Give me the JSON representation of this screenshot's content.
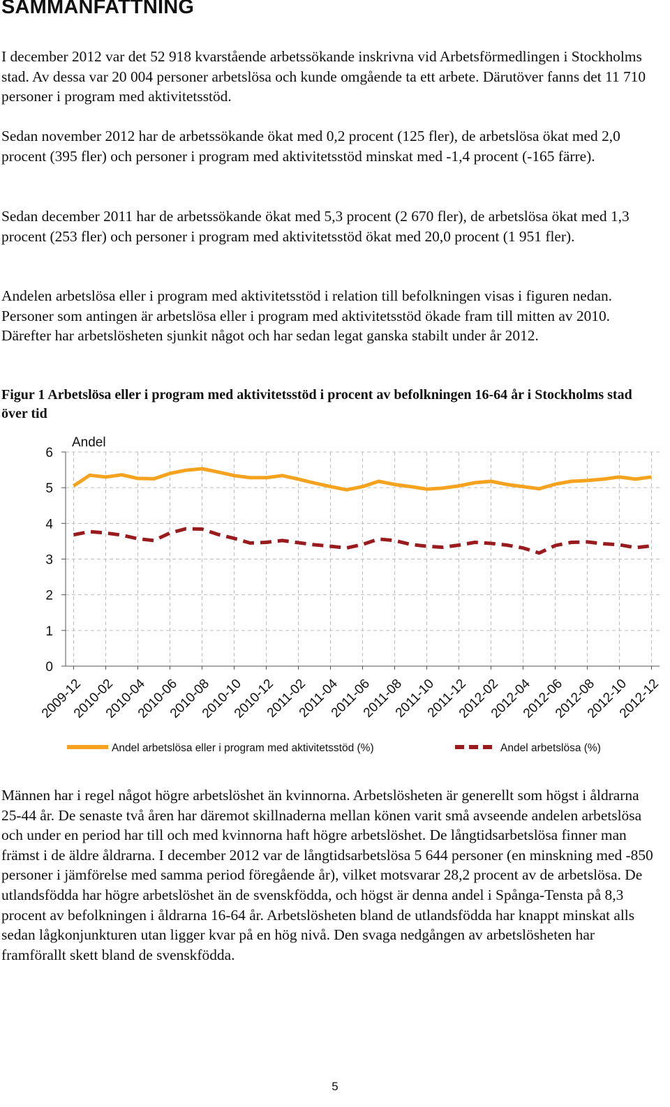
{
  "heading": "SAMMANFATTNING",
  "paragraphs": {
    "p1": "I december 2012 var det 52 918 kvarstående arbetssökande inskrivna vid Arbetsförmedlingen i Stockholms stad. Av dessa var 20 004 personer arbetslösa och kunde omgående ta ett arbete. Därutöver fanns det 11 710 personer i program med aktivitetsstöd.",
    "p2": "Sedan november 2012 har de arbetssökande ökat med 0,2 procent (125 fler), de arbetslösa ökat med 2,0 procent (395 fler) och personer i program med aktivitetsstöd minskat med -1,4 procent (-165 färre).",
    "p3": "Sedan december 2011 har de arbetssökande ökat med 5,3 procent (2 670 fler), de arbetslösa ökat med 1,3 procent (253 fler) och personer i program med aktivitetsstöd ökat med 20,0 procent (1 951 fler).",
    "p4": "Andelen arbetslösa eller i program med aktivitetsstöd i relation till befolkningen visas i figuren nedan. Personer som antingen är arbetslösa eller i program med aktivitetsstöd ökade fram till mitten av 2010. Därefter har arbetslösheten sjunkit något och har sedan legat ganska stabilt under år 2012.",
    "p5": "Männen har i regel något högre arbetslöshet än kvinnorna. Arbetslösheten är generellt som högst i åldrarna 25-44 år. De senaste två åren har däremot skillnaderna mellan könen varit små avseende andelen arbetslösa och under en period har till och med kvinnorna haft högre arbetslöshet. De långtidsarbetslösa finner man främst i de äldre åldrarna. I december 2012 var de långtidsarbetslösa 5 644 personer (en minskning med -850 personer i jämförelse med samma period föregående år), vilket motsvarar 28,2 procent av de arbetslösa. De utlandsfödda har högre arbetslöshet än de svenskfödda, och högst är denna andel i Spånga-Tensta på 8,3 procent av befolkningen i åldrarna 16-64 år. Arbetslösheten bland de utlandsfödda har knappt minskat alls sedan lågkonjunkturen utan ligger kvar på en hög nivå. Den svaga nedgången av arbetslösheten har framförallt skett bland de svenskfödda."
  },
  "figure_title": "Figur 1 Arbetslösa eller i program med aktivitetsstöd i procent av befolkningen 16-64 år i Stockholms stad över tid",
  "page_number": "5",
  "colors": {
    "series_program": "#F5A31E",
    "series_unemployed": "#9A1B1E",
    "grid": "#bdbdbd",
    "axis": "#555555"
  },
  "chart_data": {
    "type": "line",
    "title": "",
    "ylabel": "Andel",
    "xlabel": "",
    "ylim": [
      0,
      6
    ],
    "yticks": [
      "0",
      "1",
      "2",
      "3",
      "4",
      "5",
      "6"
    ],
    "grid": true,
    "legend_position": "bottom",
    "x": [
      "2009-12",
      "2010-01",
      "2010-02",
      "2010-03",
      "2010-04",
      "2010-05",
      "2010-06",
      "2010-07",
      "2010-08",
      "2010-09",
      "2010-10",
      "2010-11",
      "2010-12",
      "2011-01",
      "2011-02",
      "2011-03",
      "2011-04",
      "2011-05",
      "2011-06",
      "2011-07",
      "2011-08",
      "2011-09",
      "2011-10",
      "2011-11",
      "2011-12",
      "2012-01",
      "2012-02",
      "2012-03",
      "2012-04",
      "2012-05",
      "2012-06",
      "2012-07",
      "2012-08",
      "2012-09",
      "2012-10",
      "2012-11",
      "2012-12"
    ],
    "tick_labels": [
      "2009-12",
      "2010-02",
      "2010-04",
      "2010-06",
      "2010-08",
      "2010-10",
      "2010-12",
      "2011-02",
      "2011-04",
      "2011-06",
      "2011-08",
      "2011-10",
      "2011-12",
      "2012-02",
      "2012-04",
      "2012-06",
      "2012-08",
      "2012-10",
      "2012-12"
    ],
    "series": [
      {
        "name": "Andel arbetslösa eller i program med aktivitetsstöd (%)",
        "style": "solid",
        "values": [
          5.05,
          5.35,
          5.3,
          5.36,
          5.26,
          5.25,
          5.4,
          5.49,
          5.53,
          5.44,
          5.34,
          5.28,
          5.28,
          5.34,
          5.24,
          5.13,
          5.03,
          4.94,
          5.03,
          5.18,
          5.09,
          5.03,
          4.96,
          4.99,
          5.05,
          5.14,
          5.18,
          5.09,
          5.03,
          4.97,
          5.1,
          5.18,
          5.2,
          5.24,
          5.3,
          5.24,
          5.3
        ]
      },
      {
        "name": "Andel arbetslösa (%)",
        "style": "dashed",
        "values": [
          3.68,
          3.77,
          3.73,
          3.67,
          3.57,
          3.52,
          3.73,
          3.85,
          3.84,
          3.69,
          3.58,
          3.45,
          3.47,
          3.52,
          3.46,
          3.4,
          3.36,
          3.31,
          3.41,
          3.56,
          3.52,
          3.41,
          3.36,
          3.33,
          3.39,
          3.47,
          3.44,
          3.39,
          3.31,
          3.17,
          3.38,
          3.47,
          3.48,
          3.43,
          3.4,
          3.32,
          3.37
        ]
      }
    ]
  }
}
